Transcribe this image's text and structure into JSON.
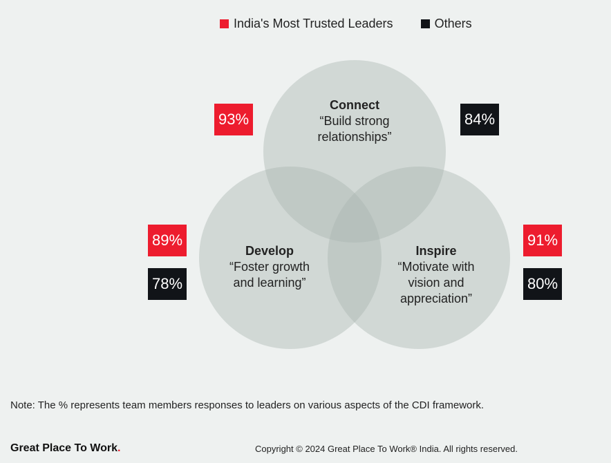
{
  "legend": {
    "items": [
      {
        "label": "India's Most Trusted Leaders",
        "color": "#ed1c2e"
      },
      {
        "label": "Others",
        "color": "#111418"
      }
    ]
  },
  "circles": {
    "connect": {
      "title": "Connect",
      "line1": "“Build strong",
      "line2": "relationships”"
    },
    "develop": {
      "title": "Develop",
      "line1": "“Foster growth",
      "line2": "and learning”"
    },
    "inspire": {
      "title": "Inspire",
      "line1": "“Motivate with",
      "line2": "vision and",
      "line3": "appreciation”"
    }
  },
  "percentages": {
    "connect_trusted": "93%",
    "connect_others": "84%",
    "develop_trusted": "89%",
    "develop_others": "78%",
    "inspire_trusted": "91%",
    "inspire_others": "80%"
  },
  "colors": {
    "circle_fill": "#a9b4b0",
    "trusted": "#ed1c2e",
    "others": "#111418"
  },
  "note": "Note: The % represents team members responses to leaders on various aspects of the CDI framework.",
  "brand": {
    "name": "Great Place To Work",
    "mark": "."
  },
  "copyright": "Copyright © 2024 Great Place To Work® India. All rights reserved."
}
